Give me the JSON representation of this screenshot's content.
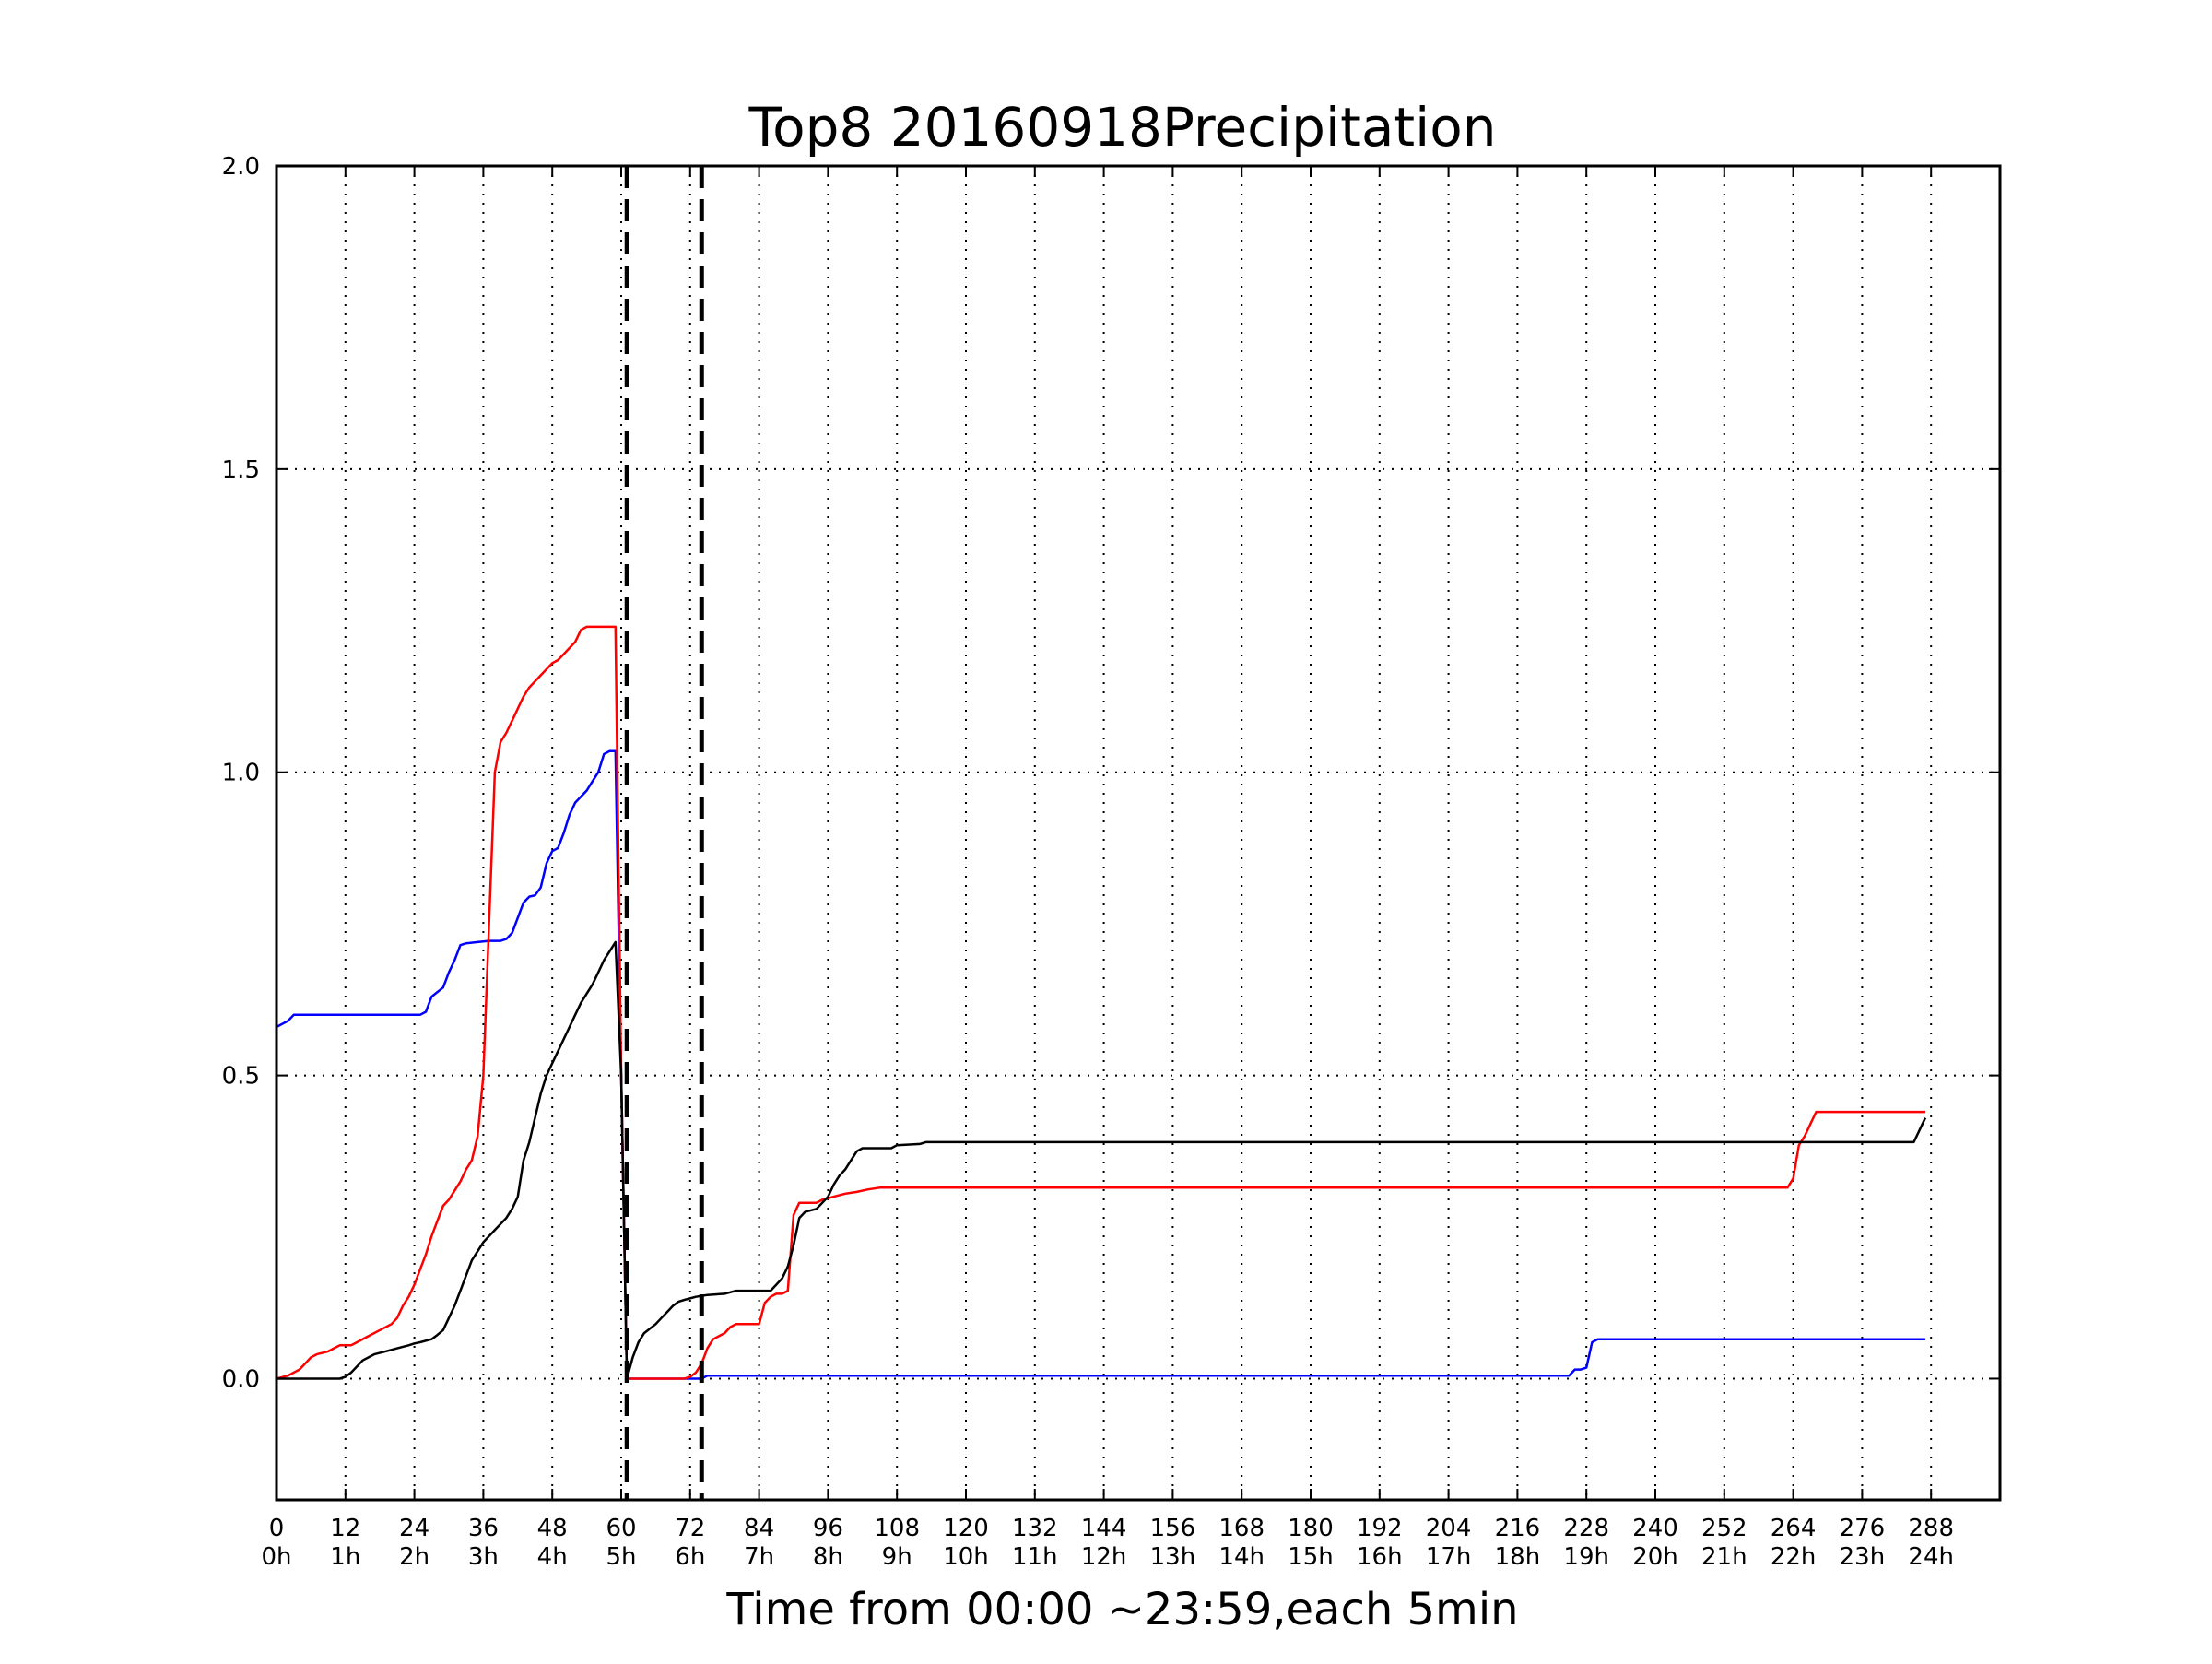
{
  "chart_data": {
    "type": "line",
    "title": "Top8 20160918Precipitation",
    "xlabel": "Time from 00:00 ~23:59,each 5min",
    "ylabel": "",
    "xlim": [
      0,
      300
    ],
    "ylim": [
      -0.2,
      2.0
    ],
    "grid": true,
    "grid_style": "dotted",
    "legend": false,
    "x_ticks": [
      {
        "value": 0,
        "label": "0",
        "sublabel": "0h"
      },
      {
        "value": 12,
        "label": "12",
        "sublabel": "1h"
      },
      {
        "value": 24,
        "label": "24",
        "sublabel": "2h"
      },
      {
        "value": 36,
        "label": "36",
        "sublabel": "3h"
      },
      {
        "value": 48,
        "label": "48",
        "sublabel": "4h"
      },
      {
        "value": 60,
        "label": "60",
        "sublabel": "5h"
      },
      {
        "value": 72,
        "label": "72",
        "sublabel": "6h"
      },
      {
        "value": 84,
        "label": "84",
        "sublabel": "7h"
      },
      {
        "value": 96,
        "label": "96",
        "sublabel": "8h"
      },
      {
        "value": 108,
        "label": "108",
        "sublabel": "9h"
      },
      {
        "value": 120,
        "label": "120",
        "sublabel": "10h"
      },
      {
        "value": 132,
        "label": "132",
        "sublabel": "11h"
      },
      {
        "value": 144,
        "label": "144",
        "sublabel": "12h"
      },
      {
        "value": 156,
        "label": "156",
        "sublabel": "13h"
      },
      {
        "value": 168,
        "label": "168",
        "sublabel": "14h"
      },
      {
        "value": 180,
        "label": "180",
        "sublabel": "15h"
      },
      {
        "value": 192,
        "label": "192",
        "sublabel": "16h"
      },
      {
        "value": 204,
        "label": "204",
        "sublabel": "17h"
      },
      {
        "value": 216,
        "label": "216",
        "sublabel": "18h"
      },
      {
        "value": 228,
        "label": "228",
        "sublabel": "19h"
      },
      {
        "value": 240,
        "label": "240",
        "sublabel": "20h"
      },
      {
        "value": 252,
        "label": "252",
        "sublabel": "21h"
      },
      {
        "value": 264,
        "label": "264",
        "sublabel": "22h"
      },
      {
        "value": 276,
        "label": "276",
        "sublabel": "23h"
      },
      {
        "value": 288,
        "label": "288",
        "sublabel": "24h"
      }
    ],
    "y_ticks": [
      {
        "value": 0.0,
        "label": "0.0"
      },
      {
        "value": 0.5,
        "label": "0.5"
      },
      {
        "value": 1.0,
        "label": "1.0"
      },
      {
        "value": 1.5,
        "label": "1.5"
      },
      {
        "value": 2.0,
        "label": "2.0"
      }
    ],
    "vlines": [
      {
        "x": 61,
        "style": "dashed",
        "color": "#000000"
      },
      {
        "x": 74,
        "style": "dashed",
        "color": "#000000"
      }
    ],
    "series": [
      {
        "color": "#0000ff",
        "points": [
          [
            0,
            0.58
          ],
          [
            1,
            0.585
          ],
          [
            2,
            0.59
          ],
          [
            3,
            0.6
          ],
          [
            10,
            0.6
          ],
          [
            20,
            0.6
          ],
          [
            25,
            0.6
          ],
          [
            26,
            0.605
          ],
          [
            27,
            0.63
          ],
          [
            29,
            0.645
          ],
          [
            30,
            0.67
          ],
          [
            31,
            0.69
          ],
          [
            32,
            0.715
          ],
          [
            33,
            0.718
          ],
          [
            35,
            0.72
          ],
          [
            37,
            0.722
          ],
          [
            39,
            0.722
          ],
          [
            40,
            0.725
          ],
          [
            41,
            0.735
          ],
          [
            42,
            0.76
          ],
          [
            43,
            0.785
          ],
          [
            44,
            0.795
          ],
          [
            45,
            0.797
          ],
          [
            46,
            0.81
          ],
          [
            47,
            0.85
          ],
          [
            48,
            0.87
          ],
          [
            49,
            0.875
          ],
          [
            50,
            0.9
          ],
          [
            51,
            0.93
          ],
          [
            52,
            0.95
          ],
          [
            53,
            0.96
          ],
          [
            54,
            0.97
          ],
          [
            55,
            0.985
          ],
          [
            56,
            1.0
          ],
          [
            57,
            1.03
          ],
          [
            58,
            1.035
          ],
          [
            59,
            1.035
          ],
          [
            60,
            0.5
          ],
          [
            61,
            0.0
          ],
          [
            74,
            0.0
          ],
          [
            75,
            0.005
          ],
          [
            110,
            0.005
          ],
          [
            160,
            0.005
          ],
          [
            200,
            0.005
          ],
          [
            225,
            0.005
          ],
          [
            226,
            0.015
          ],
          [
            227,
            0.015
          ],
          [
            228,
            0.018
          ],
          [
            229,
            0.06
          ],
          [
            230,
            0.065
          ],
          [
            260,
            0.065
          ],
          [
            287,
            0.065
          ]
        ]
      },
      {
        "color": "#ff0000",
        "points": [
          [
            0,
            0.0
          ],
          [
            2,
            0.005
          ],
          [
            4,
            0.015
          ],
          [
            5,
            0.025
          ],
          [
            6,
            0.035
          ],
          [
            7,
            0.04
          ],
          [
            9,
            0.045
          ],
          [
            10,
            0.05
          ],
          [
            11,
            0.055
          ],
          [
            13,
            0.055
          ],
          [
            14,
            0.06
          ],
          [
            16,
            0.07
          ],
          [
            18,
            0.08
          ],
          [
            20,
            0.09
          ],
          [
            21,
            0.1
          ],
          [
            22,
            0.12
          ],
          [
            23,
            0.135
          ],
          [
            24,
            0.155
          ],
          [
            25,
            0.18
          ],
          [
            26,
            0.205
          ],
          [
            27,
            0.235
          ],
          [
            28,
            0.26
          ],
          [
            29,
            0.285
          ],
          [
            30,
            0.295
          ],
          [
            31,
            0.31
          ],
          [
            32,
            0.325
          ],
          [
            33,
            0.345
          ],
          [
            34,
            0.36
          ],
          [
            35,
            0.4
          ],
          [
            36,
            0.5
          ],
          [
            37,
            0.75
          ],
          [
            38,
            1.0
          ],
          [
            39,
            1.05
          ],
          [
            40,
            1.065
          ],
          [
            41,
            1.085
          ],
          [
            42,
            1.105
          ],
          [
            43,
            1.125
          ],
          [
            44,
            1.14
          ],
          [
            45,
            1.15
          ],
          [
            46,
            1.16
          ],
          [
            47,
            1.17
          ],
          [
            48,
            1.18
          ],
          [
            49,
            1.185
          ],
          [
            50,
            1.195
          ],
          [
            51,
            1.205
          ],
          [
            52,
            1.215
          ],
          [
            53,
            1.235
          ],
          [
            54,
            1.24
          ],
          [
            59,
            1.24
          ],
          [
            60,
            0.5
          ],
          [
            61,
            0.0
          ],
          [
            71,
            0.0
          ],
          [
            72,
            0.003
          ],
          [
            73,
            0.01
          ],
          [
            74,
            0.025
          ],
          [
            75,
            0.05
          ],
          [
            76,
            0.065
          ],
          [
            77,
            0.07
          ],
          [
            78,
            0.075
          ],
          [
            79,
            0.085
          ],
          [
            80,
            0.09
          ],
          [
            84,
            0.09
          ],
          [
            85,
            0.125
          ],
          [
            86,
            0.135
          ],
          [
            87,
            0.14
          ],
          [
            88,
            0.14
          ],
          [
            89,
            0.145
          ],
          [
            90,
            0.27
          ],
          [
            91,
            0.29
          ],
          [
            94,
            0.29
          ],
          [
            95,
            0.295
          ],
          [
            97,
            0.3
          ],
          [
            99,
            0.305
          ],
          [
            101,
            0.308
          ],
          [
            103,
            0.312
          ],
          [
            105,
            0.315
          ],
          [
            107,
            0.315
          ],
          [
            150,
            0.315
          ],
          [
            200,
            0.315
          ],
          [
            263,
            0.315
          ],
          [
            264,
            0.33
          ],
          [
            265,
            0.385
          ],
          [
            266,
            0.4
          ],
          [
            267,
            0.42
          ],
          [
            268,
            0.44
          ],
          [
            287,
            0.44
          ]
        ]
      },
      {
        "color": "#000000",
        "points": [
          [
            0,
            0.0
          ],
          [
            11,
            0.0
          ],
          [
            12,
            0.003
          ],
          [
            13,
            0.01
          ],
          [
            14,
            0.02
          ],
          [
            15,
            0.03
          ],
          [
            17,
            0.04
          ],
          [
            19,
            0.045
          ],
          [
            21,
            0.05
          ],
          [
            23,
            0.055
          ],
          [
            24,
            0.058
          ],
          [
            25,
            0.06
          ],
          [
            27,
            0.065
          ],
          [
            28,
            0.072
          ],
          [
            29,
            0.08
          ],
          [
            30,
            0.1
          ],
          [
            31,
            0.12
          ],
          [
            32,
            0.145
          ],
          [
            33,
            0.17
          ],
          [
            34,
            0.195
          ],
          [
            35,
            0.21
          ],
          [
            36,
            0.225
          ],
          [
            37,
            0.235
          ],
          [
            38,
            0.245
          ],
          [
            39,
            0.255
          ],
          [
            40,
            0.265
          ],
          [
            41,
            0.28
          ],
          [
            42,
            0.3
          ],
          [
            43,
            0.36
          ],
          [
            44,
            0.39
          ],
          [
            45,
            0.43
          ],
          [
            46,
            0.47
          ],
          [
            47,
            0.5
          ],
          [
            48,
            0.52
          ],
          [
            49,
            0.54
          ],
          [
            50,
            0.56
          ],
          [
            51,
            0.58
          ],
          [
            52,
            0.6
          ],
          [
            53,
            0.62
          ],
          [
            54,
            0.635
          ],
          [
            55,
            0.65
          ],
          [
            56,
            0.67
          ],
          [
            57,
            0.69
          ],
          [
            58,
            0.705
          ],
          [
            59,
            0.72
          ],
          [
            60,
            0.5
          ],
          [
            61,
            0.0
          ],
          [
            62,
            0.035
          ],
          [
            63,
            0.06
          ],
          [
            64,
            0.075
          ],
          [
            66,
            0.09
          ],
          [
            67,
            0.1
          ],
          [
            68,
            0.11
          ],
          [
            69,
            0.12
          ],
          [
            70,
            0.127
          ],
          [
            71,
            0.13
          ],
          [
            73,
            0.135
          ],
          [
            75,
            0.138
          ],
          [
            78,
            0.14
          ],
          [
            80,
            0.145
          ],
          [
            86,
            0.145
          ],
          [
            87,
            0.155
          ],
          [
            88,
            0.165
          ],
          [
            89,
            0.185
          ],
          [
            90,
            0.22
          ],
          [
            91,
            0.265
          ],
          [
            92,
            0.275
          ],
          [
            94,
            0.28
          ],
          [
            96,
            0.3
          ],
          [
            97,
            0.32
          ],
          [
            98,
            0.335
          ],
          [
            99,
            0.345
          ],
          [
            100,
            0.36
          ],
          [
            101,
            0.375
          ],
          [
            102,
            0.38
          ],
          [
            107,
            0.38
          ],
          [
            108,
            0.385
          ],
          [
            112,
            0.387
          ],
          [
            113,
            0.39
          ],
          [
            150,
            0.39
          ],
          [
            200,
            0.39
          ],
          [
            285,
            0.39
          ],
          [
            286,
            0.41
          ],
          [
            287,
            0.43
          ]
        ]
      }
    ]
  }
}
